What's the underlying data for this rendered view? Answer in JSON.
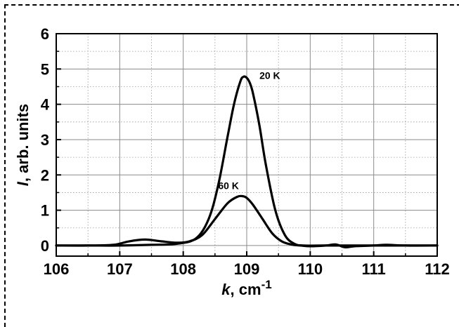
{
  "chart_data": {
    "type": "line",
    "xlabel": {
      "italic": "k",
      "rest": ", cm",
      "sup": "-1"
    },
    "ylabel": {
      "italic": "I",
      "rest": ", arb. units"
    },
    "xlim": [
      106,
      112
    ],
    "ylim": [
      -0.3,
      6
    ],
    "x_ticks": [
      106,
      107,
      108,
      109,
      110,
      111,
      112
    ],
    "y_ticks": [
      0,
      1,
      2,
      3,
      4,
      5,
      6
    ],
    "grid": true,
    "series": [
      {
        "name": "20 K",
        "x": [
          106.0,
          106.5,
          107.0,
          107.5,
          107.9,
          108.2,
          108.4,
          108.55,
          108.7,
          108.8,
          108.9,
          108.95,
          109.0,
          109.05,
          109.1,
          109.2,
          109.3,
          109.45,
          109.6,
          109.75,
          109.9,
          110.2,
          110.5,
          111.0,
          112.0
        ],
        "y": [
          0.0,
          0.0,
          0.0,
          0.02,
          0.05,
          0.2,
          0.75,
          1.7,
          3.1,
          4.0,
          4.65,
          4.78,
          4.75,
          4.6,
          4.3,
          3.4,
          2.3,
          1.0,
          0.3,
          0.05,
          0.0,
          0.0,
          0.0,
          0.0,
          0.0
        ]
      },
      {
        "name": "60 K",
        "x": [
          106.0,
          106.5,
          106.9,
          107.15,
          107.4,
          107.65,
          107.9,
          108.1,
          108.3,
          108.5,
          108.7,
          108.85,
          108.93,
          109.0,
          109.1,
          109.25,
          109.4,
          109.55,
          109.7,
          109.85,
          110.0,
          110.25,
          110.4,
          110.55,
          110.7,
          111.0,
          111.2,
          111.5,
          112.0
        ],
        "y": [
          0.0,
          0.0,
          0.02,
          0.12,
          0.17,
          0.12,
          0.08,
          0.12,
          0.3,
          0.75,
          1.2,
          1.38,
          1.4,
          1.35,
          1.15,
          0.75,
          0.35,
          0.12,
          0.03,
          0.0,
          -0.02,
          0.0,
          0.03,
          -0.05,
          -0.02,
          0.0,
          0.02,
          0.0,
          0.0
        ]
      }
    ],
    "annotations": [
      {
        "text": "20 K",
        "x": 109.2,
        "y": 4.72
      },
      {
        "text": "60 K",
        "x": 108.55,
        "y": 1.6
      }
    ]
  }
}
